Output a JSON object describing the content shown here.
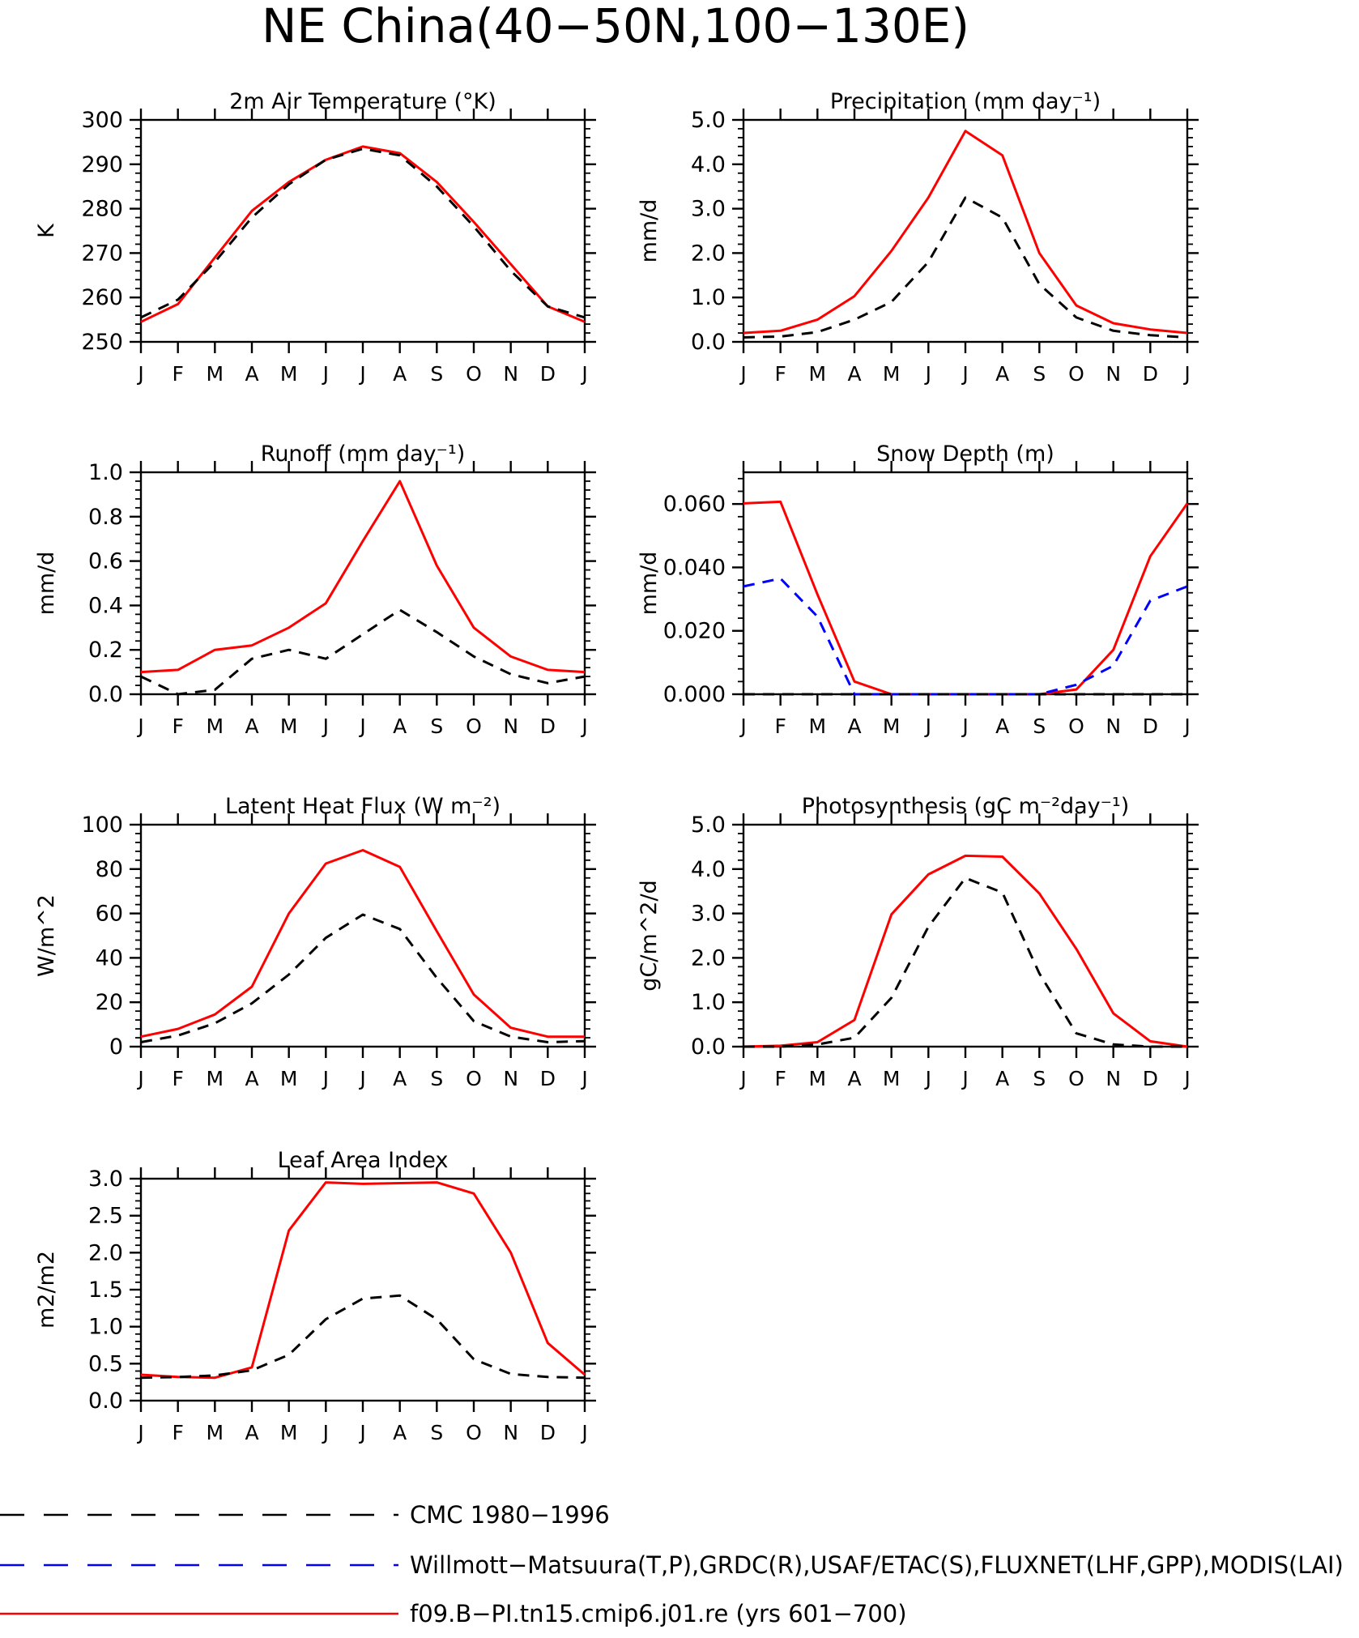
{
  "page": {
    "title": "NE China(40−50N,100−130E)"
  },
  "colors": {
    "model": "#ff0000",
    "cmc": "#000000",
    "obs": "#0000ff",
    "axis": "#000000"
  },
  "chart_data": [
    {
      "id": "t2m",
      "type": "line",
      "title": "2m Air Temperature (°K)",
      "ylabel": "K",
      "x": [
        "J",
        "F",
        "M",
        "A",
        "M",
        "J",
        "J",
        "A",
        "S",
        "O",
        "N",
        "D",
        "J"
      ],
      "ylim": [
        250,
        300
      ],
      "yticks": [
        "250",
        "260",
        "270",
        "280",
        "290",
        "300"
      ],
      "grid": false,
      "series": [
        {
          "key": "model",
          "values": [
            254.5,
            258.5,
            269,
            279.5,
            286,
            291,
            294,
            292.5,
            286,
            277,
            267.5,
            258,
            254.5
          ]
        },
        {
          "key": "cmc",
          "values": [
            255.5,
            259.5,
            268,
            278,
            285.5,
            291,
            293.5,
            292,
            285,
            276,
            266,
            258,
            255.5
          ]
        }
      ]
    },
    {
      "id": "precip",
      "type": "line",
      "title": "Precipitation (mm day⁻¹)",
      "ylabel": "mm/d",
      "x": [
        "J",
        "F",
        "M",
        "A",
        "M",
        "J",
        "J",
        "A",
        "S",
        "O",
        "N",
        "D",
        "J"
      ],
      "ylim": [
        0,
        5
      ],
      "yticks": [
        "0.0",
        "1.0",
        "2.0",
        "3.0",
        "4.0",
        "5.0"
      ],
      "grid": false,
      "series": [
        {
          "key": "model",
          "values": [
            0.2,
            0.25,
            0.5,
            1.03,
            2.05,
            3.25,
            4.75,
            4.2,
            2.0,
            0.82,
            0.42,
            0.28,
            0.2
          ]
        },
        {
          "key": "cmc",
          "values": [
            0.1,
            0.12,
            0.22,
            0.5,
            0.9,
            1.8,
            3.25,
            2.8,
            1.3,
            0.55,
            0.25,
            0.15,
            0.1
          ]
        }
      ]
    },
    {
      "id": "runoff",
      "type": "line",
      "title": "Runoff (mm day⁻¹)",
      "ylabel": "mm/d",
      "x": [
        "J",
        "F",
        "M",
        "A",
        "M",
        "J",
        "J",
        "A",
        "S",
        "O",
        "N",
        "D",
        "J"
      ],
      "ylim": [
        0,
        1
      ],
      "yticks": [
        "0.0",
        "0.2",
        "0.4",
        "0.6",
        "0.8",
        "1.0"
      ],
      "grid": false,
      "series": [
        {
          "key": "model",
          "values": [
            0.1,
            0.11,
            0.2,
            0.22,
            0.3,
            0.41,
            0.69,
            0.96,
            0.58,
            0.3,
            0.17,
            0.11,
            0.1
          ]
        },
        {
          "key": "cmc",
          "values": [
            0.08,
            0.0,
            0.02,
            0.16,
            0.2,
            0.16,
            0.27,
            0.38,
            0.28,
            0.17,
            0.09,
            0.05,
            0.08
          ]
        }
      ]
    },
    {
      "id": "snow",
      "type": "line",
      "title": "Snow Depth (m)",
      "ylabel": "mm/d",
      "x": [
        "J",
        "F",
        "M",
        "A",
        "M",
        "J",
        "J",
        "A",
        "S",
        "O",
        "N",
        "D",
        "J"
      ],
      "ylim": [
        0,
        0.07
      ],
      "yticks": [
        "0.000",
        "0.020",
        "0.040",
        "0.060"
      ],
      "ytick_values": [
        0,
        0.02,
        0.04,
        0.06
      ],
      "grid": false,
      "series": [
        {
          "key": "model",
          "values": [
            0.0602,
            0.0607,
            0.0315,
            0.004,
            0.0,
            0.0,
            0.0,
            0.0,
            0.0,
            0.0015,
            0.014,
            0.0435,
            0.0602
          ]
        },
        {
          "key": "obs",
          "values": [
            0.034,
            0.0365,
            0.0245,
            0.0,
            0.0,
            0.0,
            0.0,
            0.0,
            0.0,
            0.003,
            0.009,
            0.0295,
            0.034
          ]
        },
        {
          "key": "cmc",
          "values": [
            0,
            0,
            0,
            0,
            0,
            0,
            0,
            0,
            0,
            0,
            0,
            0,
            0
          ]
        }
      ]
    },
    {
      "id": "lhf",
      "type": "line",
      "title": "Latent Heat Flux (W m⁻²)",
      "ylabel": "W/m^2",
      "x": [
        "J",
        "F",
        "M",
        "A",
        "M",
        "J",
        "J",
        "A",
        "S",
        "O",
        "N",
        "D",
        "J"
      ],
      "ylim": [
        0,
        100
      ],
      "yticks": [
        "0",
        "20",
        "40",
        "60",
        "80",
        "100"
      ],
      "grid": false,
      "series": [
        {
          "key": "model",
          "values": [
            4.5,
            8,
            14.5,
            27,
            60,
            82.5,
            88.5,
            81,
            52,
            23.5,
            8.5,
            4.5,
            4.5
          ]
        },
        {
          "key": "cmc",
          "values": [
            2,
            5,
            10.5,
            19.5,
            32.5,
            49,
            59.5,
            53,
            31,
            11.5,
            4.5,
            2,
            2.5
          ]
        }
      ]
    },
    {
      "id": "gpp",
      "type": "line",
      "title": "Photosynthesis (gC m⁻²day⁻¹)",
      "ylabel": "gC/m^2/d",
      "x": [
        "J",
        "F",
        "M",
        "A",
        "M",
        "J",
        "J",
        "A",
        "S",
        "O",
        "N",
        "D",
        "J"
      ],
      "ylim": [
        0,
        5
      ],
      "yticks": [
        "0.0",
        "1.0",
        "2.0",
        "3.0",
        "4.0",
        "5.0"
      ],
      "grid": false,
      "series": [
        {
          "key": "model",
          "values": [
            0.0,
            0.02,
            0.1,
            0.6,
            2.98,
            3.88,
            4.3,
            4.28,
            3.45,
            2.2,
            0.75,
            0.12,
            0.0
          ]
        },
        {
          "key": "cmc",
          "values": [
            0.0,
            0.0,
            0.05,
            0.2,
            1.1,
            2.7,
            3.8,
            3.47,
            1.65,
            0.3,
            0.05,
            0.0,
            0.0
          ]
        }
      ]
    },
    {
      "id": "lai",
      "type": "line",
      "title": "Leaf Area Index",
      "ylabel": "m2/m2",
      "x": [
        "J",
        "F",
        "M",
        "A",
        "M",
        "J",
        "J",
        "A",
        "S",
        "O",
        "N",
        "D",
        "J"
      ],
      "ylim": [
        0,
        3
      ],
      "yticks": [
        "0.0",
        "0.5",
        "1.0",
        "1.5",
        "2.0",
        "2.5",
        "3.0"
      ],
      "grid": false,
      "series": [
        {
          "key": "model",
          "values": [
            0.35,
            0.32,
            0.31,
            0.45,
            2.3,
            2.95,
            2.93,
            2.94,
            2.95,
            2.8,
            2.0,
            0.78,
            0.35
          ]
        },
        {
          "key": "cmc",
          "values": [
            0.31,
            0.32,
            0.34,
            0.41,
            0.62,
            1.1,
            1.38,
            1.42,
            1.1,
            0.56,
            0.36,
            0.32,
            0.31
          ]
        }
      ]
    }
  ],
  "legend": [
    {
      "key": "cmc",
      "label": "CMC 1980−1996",
      "dash": "dash"
    },
    {
      "key": "obs",
      "label": "Willmott−Matsuura(T,P),GRDC(R),USAF/ETAC(S),FLUXNET(LHF,GPP),MODIS(LAI)",
      "dash": "dash"
    },
    {
      "key": "model",
      "label": "f09.B−PI.tn15.cmip6.j01.re (yrs 601−700)",
      "dash": "solid"
    }
  ]
}
